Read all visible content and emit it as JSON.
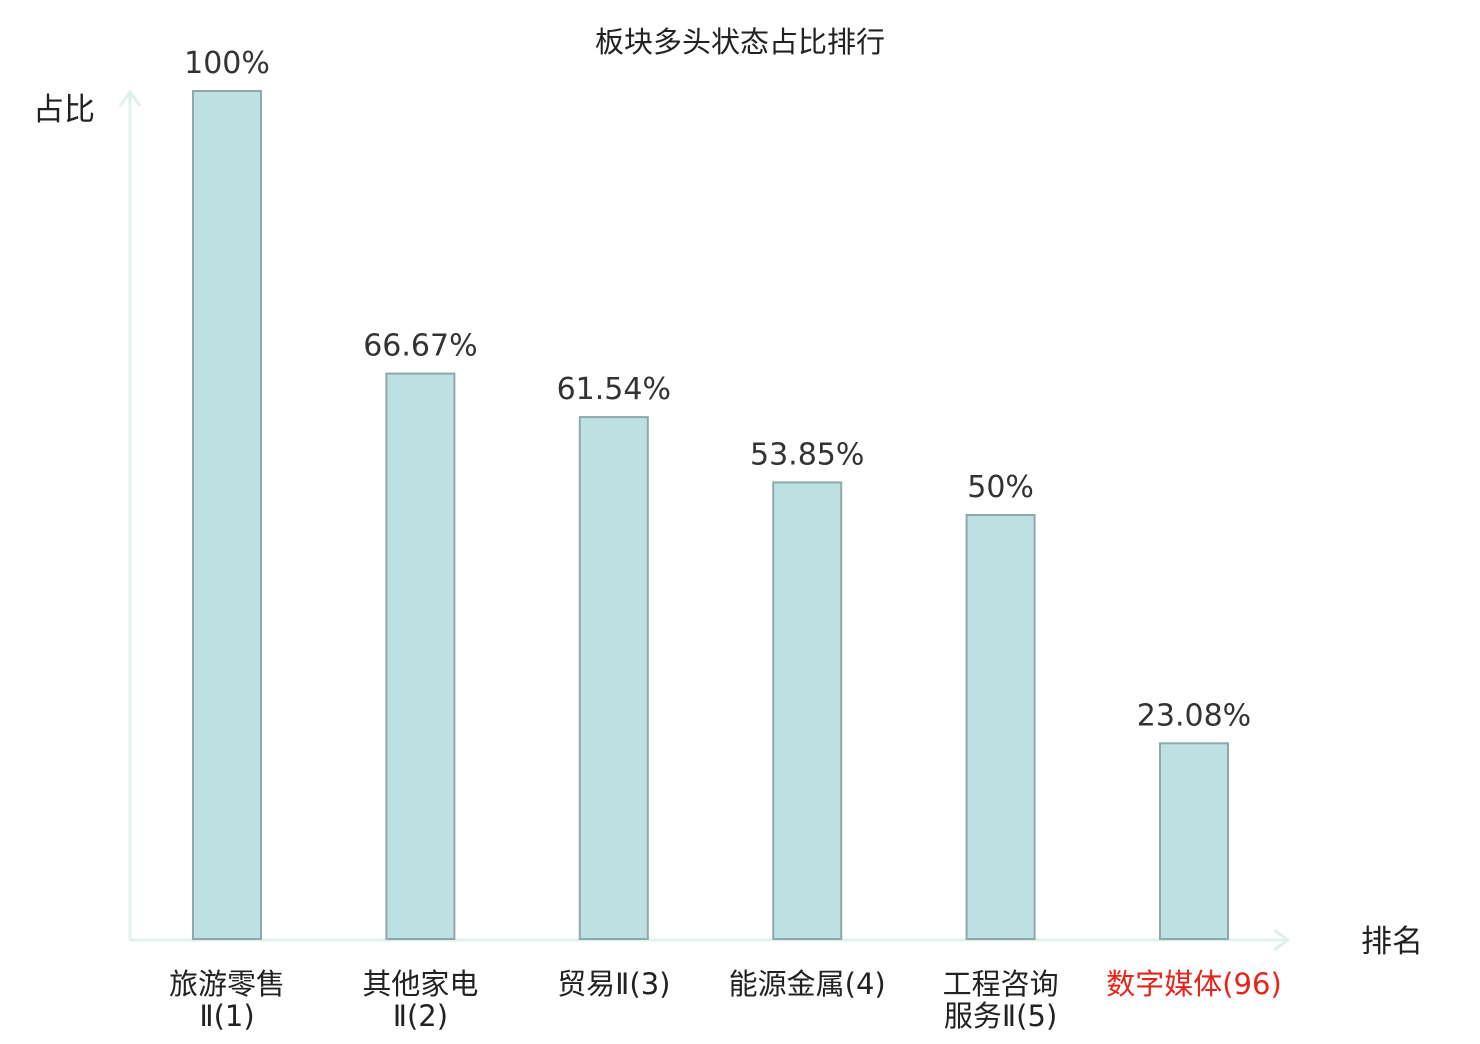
{
  "chart_data": {
    "type": "bar",
    "title": "板块多头状态占比排行",
    "ylabel": "占比",
    "xlabel": "排名",
    "ylim": [
      0,
      100
    ],
    "grid": false,
    "categories": [
      {
        "lines": [
          "旅游零售",
          "Ⅱ(1)"
        ],
        "highlight": false
      },
      {
        "lines": [
          "其他家电",
          "Ⅱ(2)"
        ],
        "highlight": false
      },
      {
        "lines": [
          "贸易Ⅱ(3)"
        ],
        "highlight": false
      },
      {
        "lines": [
          "能源金属(4)"
        ],
        "highlight": false
      },
      {
        "lines": [
          "工程咨询",
          "服务Ⅱ(5)"
        ],
        "highlight": false
      },
      {
        "lines": [
          "数字媒体(96)"
        ],
        "highlight": true
      }
    ],
    "values": [
      100,
      66.67,
      61.54,
      53.85,
      50,
      23.08
    ],
    "value_labels": [
      "100%",
      "66.67%",
      "61.54%",
      "53.85%",
      "50%",
      "23.08%"
    ]
  },
  "colors": {
    "bar_fill": "#bde0e3",
    "bar_stroke": "#8fa9ab",
    "axis": "#dff1ee",
    "text": "#333333",
    "label": "#222222",
    "highlight": "#e8231a"
  }
}
